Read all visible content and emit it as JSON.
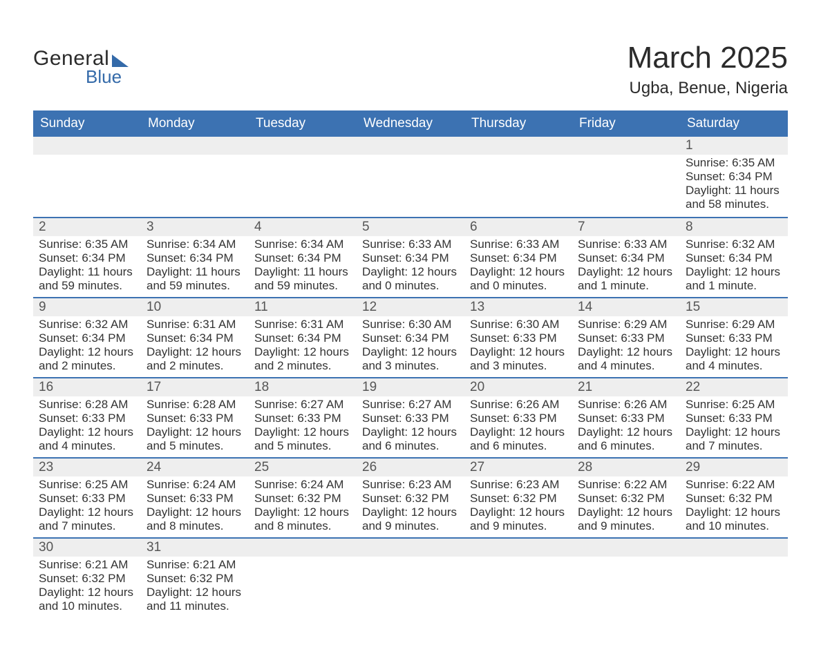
{
  "brand": {
    "word1": "General",
    "word2": "Blue",
    "accent_color": "#346aa9",
    "text_color": "#2b2b2b"
  },
  "header": {
    "month_title": "March 2025",
    "location": "Ugba, Benue, Nigeria"
  },
  "style": {
    "row_border_color": "#3c72b2",
    "header_bg": "#3c72b2",
    "header_fg": "#ffffff",
    "band_bg": "#eeeeee",
    "band_fg": "#555555",
    "body_fg": "#333333",
    "background": "#ffffff",
    "title_fontsize": 44,
    "location_fontsize": 24,
    "header_fontsize": 19,
    "daynum_fontsize": 19,
    "detail_fontsize": 17
  },
  "columns": [
    "Sunday",
    "Monday",
    "Tuesday",
    "Wednesday",
    "Thursday",
    "Friday",
    "Saturday"
  ],
  "weeks": [
    [
      {
        "day": "",
        "sunrise": "",
        "sunset": "",
        "daylight": ""
      },
      {
        "day": "",
        "sunrise": "",
        "sunset": "",
        "daylight": ""
      },
      {
        "day": "",
        "sunrise": "",
        "sunset": "",
        "daylight": ""
      },
      {
        "day": "",
        "sunrise": "",
        "sunset": "",
        "daylight": ""
      },
      {
        "day": "",
        "sunrise": "",
        "sunset": "",
        "daylight": ""
      },
      {
        "day": "",
        "sunrise": "",
        "sunset": "",
        "daylight": ""
      },
      {
        "day": "1",
        "sunrise": "Sunrise: 6:35 AM",
        "sunset": "Sunset: 6:34 PM",
        "daylight": "Daylight: 11 hours and 58 minutes."
      }
    ],
    [
      {
        "day": "2",
        "sunrise": "Sunrise: 6:35 AM",
        "sunset": "Sunset: 6:34 PM",
        "daylight": "Daylight: 11 hours and 59 minutes."
      },
      {
        "day": "3",
        "sunrise": "Sunrise: 6:34 AM",
        "sunset": "Sunset: 6:34 PM",
        "daylight": "Daylight: 11 hours and 59 minutes."
      },
      {
        "day": "4",
        "sunrise": "Sunrise: 6:34 AM",
        "sunset": "Sunset: 6:34 PM",
        "daylight": "Daylight: 11 hours and 59 minutes."
      },
      {
        "day": "5",
        "sunrise": "Sunrise: 6:33 AM",
        "sunset": "Sunset: 6:34 PM",
        "daylight": "Daylight: 12 hours and 0 minutes."
      },
      {
        "day": "6",
        "sunrise": "Sunrise: 6:33 AM",
        "sunset": "Sunset: 6:34 PM",
        "daylight": "Daylight: 12 hours and 0 minutes."
      },
      {
        "day": "7",
        "sunrise": "Sunrise: 6:33 AM",
        "sunset": "Sunset: 6:34 PM",
        "daylight": "Daylight: 12 hours and 1 minute."
      },
      {
        "day": "8",
        "sunrise": "Sunrise: 6:32 AM",
        "sunset": "Sunset: 6:34 PM",
        "daylight": "Daylight: 12 hours and 1 minute."
      }
    ],
    [
      {
        "day": "9",
        "sunrise": "Sunrise: 6:32 AM",
        "sunset": "Sunset: 6:34 PM",
        "daylight": "Daylight: 12 hours and 2 minutes."
      },
      {
        "day": "10",
        "sunrise": "Sunrise: 6:31 AM",
        "sunset": "Sunset: 6:34 PM",
        "daylight": "Daylight: 12 hours and 2 minutes."
      },
      {
        "day": "11",
        "sunrise": "Sunrise: 6:31 AM",
        "sunset": "Sunset: 6:34 PM",
        "daylight": "Daylight: 12 hours and 2 minutes."
      },
      {
        "day": "12",
        "sunrise": "Sunrise: 6:30 AM",
        "sunset": "Sunset: 6:34 PM",
        "daylight": "Daylight: 12 hours and 3 minutes."
      },
      {
        "day": "13",
        "sunrise": "Sunrise: 6:30 AM",
        "sunset": "Sunset: 6:33 PM",
        "daylight": "Daylight: 12 hours and 3 minutes."
      },
      {
        "day": "14",
        "sunrise": "Sunrise: 6:29 AM",
        "sunset": "Sunset: 6:33 PM",
        "daylight": "Daylight: 12 hours and 4 minutes."
      },
      {
        "day": "15",
        "sunrise": "Sunrise: 6:29 AM",
        "sunset": "Sunset: 6:33 PM",
        "daylight": "Daylight: 12 hours and 4 minutes."
      }
    ],
    [
      {
        "day": "16",
        "sunrise": "Sunrise: 6:28 AM",
        "sunset": "Sunset: 6:33 PM",
        "daylight": "Daylight: 12 hours and 4 minutes."
      },
      {
        "day": "17",
        "sunrise": "Sunrise: 6:28 AM",
        "sunset": "Sunset: 6:33 PM",
        "daylight": "Daylight: 12 hours and 5 minutes."
      },
      {
        "day": "18",
        "sunrise": "Sunrise: 6:27 AM",
        "sunset": "Sunset: 6:33 PM",
        "daylight": "Daylight: 12 hours and 5 minutes."
      },
      {
        "day": "19",
        "sunrise": "Sunrise: 6:27 AM",
        "sunset": "Sunset: 6:33 PM",
        "daylight": "Daylight: 12 hours and 6 minutes."
      },
      {
        "day": "20",
        "sunrise": "Sunrise: 6:26 AM",
        "sunset": "Sunset: 6:33 PM",
        "daylight": "Daylight: 12 hours and 6 minutes."
      },
      {
        "day": "21",
        "sunrise": "Sunrise: 6:26 AM",
        "sunset": "Sunset: 6:33 PM",
        "daylight": "Daylight: 12 hours and 6 minutes."
      },
      {
        "day": "22",
        "sunrise": "Sunrise: 6:25 AM",
        "sunset": "Sunset: 6:33 PM",
        "daylight": "Daylight: 12 hours and 7 minutes."
      }
    ],
    [
      {
        "day": "23",
        "sunrise": "Sunrise: 6:25 AM",
        "sunset": "Sunset: 6:33 PM",
        "daylight": "Daylight: 12 hours and 7 minutes."
      },
      {
        "day": "24",
        "sunrise": "Sunrise: 6:24 AM",
        "sunset": "Sunset: 6:33 PM",
        "daylight": "Daylight: 12 hours and 8 minutes."
      },
      {
        "day": "25",
        "sunrise": "Sunrise: 6:24 AM",
        "sunset": "Sunset: 6:32 PM",
        "daylight": "Daylight: 12 hours and 8 minutes."
      },
      {
        "day": "26",
        "sunrise": "Sunrise: 6:23 AM",
        "sunset": "Sunset: 6:32 PM",
        "daylight": "Daylight: 12 hours and 9 minutes."
      },
      {
        "day": "27",
        "sunrise": "Sunrise: 6:23 AM",
        "sunset": "Sunset: 6:32 PM",
        "daylight": "Daylight: 12 hours and 9 minutes."
      },
      {
        "day": "28",
        "sunrise": "Sunrise: 6:22 AM",
        "sunset": "Sunset: 6:32 PM",
        "daylight": "Daylight: 12 hours and 9 minutes."
      },
      {
        "day": "29",
        "sunrise": "Sunrise: 6:22 AM",
        "sunset": "Sunset: 6:32 PM",
        "daylight": "Daylight: 12 hours and 10 minutes."
      }
    ],
    [
      {
        "day": "30",
        "sunrise": "Sunrise: 6:21 AM",
        "sunset": "Sunset: 6:32 PM",
        "daylight": "Daylight: 12 hours and 10 minutes."
      },
      {
        "day": "31",
        "sunrise": "Sunrise: 6:21 AM",
        "sunset": "Sunset: 6:32 PM",
        "daylight": "Daylight: 12 hours and 11 minutes."
      },
      {
        "day": "",
        "sunrise": "",
        "sunset": "",
        "daylight": ""
      },
      {
        "day": "",
        "sunrise": "",
        "sunset": "",
        "daylight": ""
      },
      {
        "day": "",
        "sunrise": "",
        "sunset": "",
        "daylight": ""
      },
      {
        "day": "",
        "sunrise": "",
        "sunset": "",
        "daylight": ""
      },
      {
        "day": "",
        "sunrise": "",
        "sunset": "",
        "daylight": ""
      }
    ]
  ]
}
